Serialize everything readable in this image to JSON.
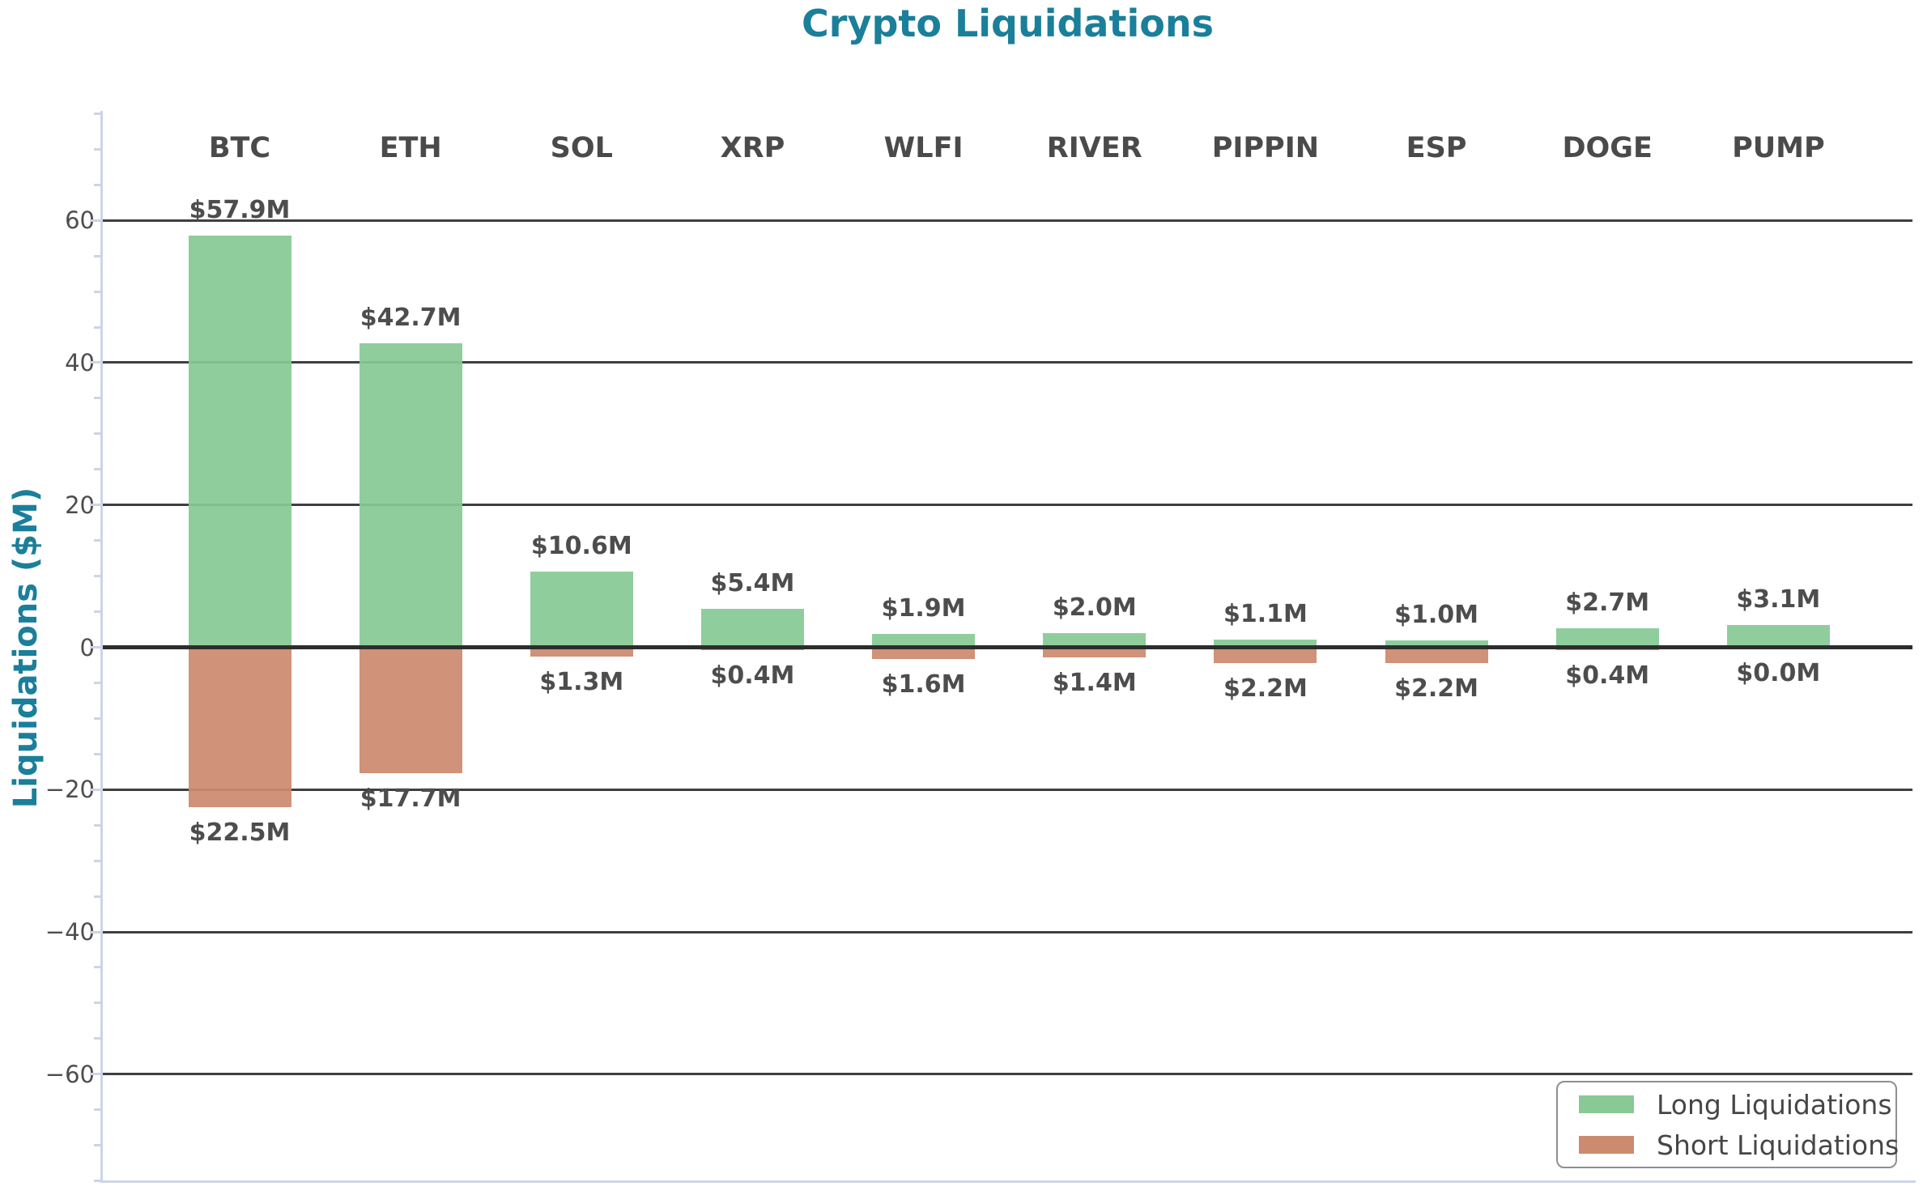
{
  "chart_data": {
    "type": "bar",
    "title": "Crypto Liquidations",
    "ylabel": "Liquidations ($M)",
    "categories": [
      "BTC",
      "ETH",
      "SOL",
      "XRP",
      "WLFI",
      "RIVER",
      "PIPPIN",
      "ESP",
      "DOGE",
      "PUMP"
    ],
    "series": [
      {
        "name": "Long Liquidations",
        "direction": "up",
        "color": "#88c996",
        "values": [
          57.9,
          42.7,
          10.6,
          5.4,
          1.9,
          2.0,
          1.1,
          1.0,
          2.7,
          3.1
        ],
        "labels": [
          "$57.9M",
          "$42.7M",
          "$10.6M",
          "$5.4M",
          "$1.9M",
          "$2.0M",
          "$1.1M",
          "$1.0M",
          "$2.7M",
          "$3.1M"
        ]
      },
      {
        "name": "Short Liquidations",
        "direction": "down",
        "color": "#cc8a6e",
        "values": [
          22.5,
          17.7,
          1.3,
          0.4,
          1.6,
          1.4,
          2.2,
          2.2,
          0.4,
          0.0
        ],
        "labels": [
          "$22.5M",
          "$17.7M",
          "$1.3M",
          "$0.4M",
          "$1.6M",
          "$1.4M",
          "$2.2M",
          "$2.2M",
          "$0.4M",
          "$0.0M"
        ]
      }
    ],
    "yaxis": {
      "ticks": [
        {
          "value": 60,
          "label": "60"
        },
        {
          "value": 40,
          "label": "40"
        },
        {
          "value": 20,
          "label": "20"
        },
        {
          "value": 0,
          "label": "0"
        },
        {
          "value": -20,
          "label": "−20"
        },
        {
          "value": -40,
          "label": "−40"
        },
        {
          "value": -60,
          "label": "−60"
        }
      ],
      "minor_tick_step": 5,
      "ylim": [
        -75,
        75
      ]
    },
    "grid": true,
    "legend_position": "lower right",
    "colors": {
      "title": "#1a7f9a",
      "axis_label": "#1a7f9a",
      "long_bar": "#88c996",
      "short_bar": "#cc8a6e",
      "gridline": "#3f3f3f",
      "zero_line": "#2d2d2d",
      "spine": "#cdd4e6",
      "text": "#4d4d4d"
    }
  }
}
